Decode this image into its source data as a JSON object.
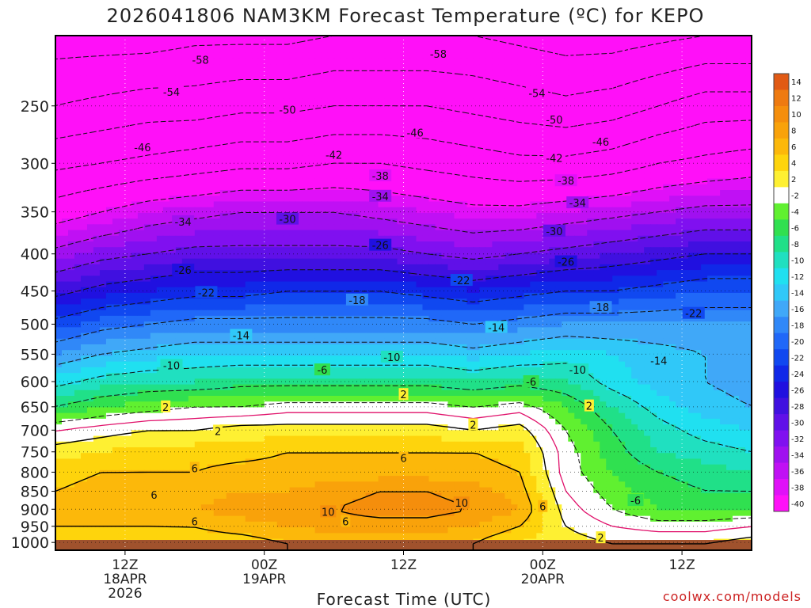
{
  "chart_data": {
    "type": "heatmap",
    "title": "2026041806 NAM3KM Forecast Temperature (ºC) for KEPO",
    "xlabel": "Forecast Time (UTC)",
    "credit": "coolwx.com/models",
    "y_scale": "log",
    "y_range": [
      200,
      1025
    ],
    "y_ticks": [
      250,
      300,
      350,
      400,
      450,
      500,
      550,
      600,
      650,
      700,
      750,
      800,
      850,
      900,
      950,
      1000
    ],
    "x_range": [
      0,
      60
    ],
    "x_ticks": [
      {
        "hour": 6,
        "lines": [
          "12Z",
          "18APR",
          "2026"
        ]
      },
      {
        "hour": 18,
        "lines": [
          "00Z",
          "19APR"
        ]
      },
      {
        "hour": 30,
        "lines": [
          "12Z"
        ]
      },
      {
        "hour": 42,
        "lines": [
          "00Z",
          "20APR"
        ]
      },
      {
        "hour": 54,
        "lines": [
          "12Z"
        ]
      }
    ],
    "colorbar": {
      "labels": [
        "14",
        "12",
        "10",
        "8",
        "6",
        "4",
        "2",
        "-2",
        "-4",
        "-6",
        "-8",
        "-10",
        "-12",
        "-14",
        "-16",
        "-18",
        "-20",
        "-22",
        "-24",
        "-26",
        "-28",
        "-30",
        "-32",
        "-34",
        "-36",
        "-38",
        "-40"
      ],
      "colors": [
        "#e15a14",
        "#ee7a10",
        "#f58e0c",
        "#f9a20a",
        "#fcb80a",
        "#fed40c",
        "#fef032",
        "#ffffff",
        "#60f030",
        "#30e050",
        "#20e088",
        "#20e0c0",
        "#20e0f0",
        "#30c8f8",
        "#40a8f8",
        "#3088f8",
        "#2068f8",
        "#1048f0",
        "#1028e8",
        "#2010e0",
        "#4010e0",
        "#6010e8",
        "#8010f0",
        "#a010f0",
        "#c010f4",
        "#e010f8",
        "#ff10f8"
      ]
    },
    "grid": true,
    "x_hours": [
      0,
      4,
      8,
      12,
      16,
      20,
      24,
      28,
      32,
      36,
      40,
      44,
      48,
      52,
      56,
      60
    ],
    "pressure_levels": [
      200,
      250,
      300,
      350,
      400,
      450,
      500,
      550,
      600,
      650,
      700,
      750,
      800,
      850,
      900,
      950,
      1000
    ],
    "temperature_c": [
      [
        -60,
        -60,
        -60,
        -59,
        -59,
        -59,
        -58,
        -58,
        -58,
        -58,
        -59,
        -60,
        -60,
        -59,
        -58,
        -58
      ],
      [
        -54,
        -53,
        -52,
        -52,
        -51,
        -51,
        -50,
        -50,
        -50,
        -51,
        -52,
        -53,
        -52,
        -50,
        -48,
        -48
      ],
      [
        -47,
        -46,
        -45,
        -44,
        -43,
        -43,
        -42,
        -42,
        -43,
        -44,
        -45,
        -45,
        -44,
        -42,
        -41,
        -40
      ],
      [
        -40,
        -38,
        -36,
        -35,
        -34,
        -34,
        -34,
        -35,
        -36,
        -37,
        -37,
        -36,
        -35,
        -34,
        -33,
        -33
      ],
      [
        -33,
        -31,
        -30,
        -29,
        -29,
        -29,
        -29,
        -29,
        -30,
        -31,
        -30,
        -29,
        -28,
        -27,
        -26,
        -26
      ],
      [
        -27,
        -25,
        -24,
        -23,
        -23,
        -22,
        -22,
        -22,
        -23,
        -24,
        -23,
        -22,
        -22,
        -21,
        -20,
        -20
      ],
      [
        -21,
        -19,
        -18,
        -17,
        -17,
        -17,
        -17,
        -17,
        -17,
        -18,
        -17,
        -16,
        -16,
        -16,
        -16,
        -16
      ],
      [
        -16,
        -14,
        -13,
        -12,
        -12,
        -12,
        -12,
        -12,
        -12,
        -13,
        -12,
        -11,
        -12,
        -13,
        -14,
        -14
      ],
      [
        -11,
        -9,
        -8,
        -8,
        -7,
        -7,
        -7,
        -7,
        -7,
        -8,
        -7,
        -8,
        -11,
        -13,
        -14,
        -15
      ],
      [
        -6,
        -4,
        -3,
        -2,
        -2,
        -1,
        -1,
        -1,
        -1,
        -2,
        -1,
        -4,
        -8,
        -11,
        -13,
        -14
      ],
      [
        0,
        1,
        2,
        2,
        3,
        3,
        3,
        3,
        3,
        2,
        3,
        -2,
        -6,
        -9,
        -11,
        -12
      ],
      [
        3,
        4,
        5,
        5,
        5,
        6,
        6,
        6,
        6,
        6,
        5,
        -1,
        -5,
        -8,
        -9,
        -10
      ],
      [
        5,
        6,
        6,
        6,
        7,
        7,
        7,
        7,
        7,
        7,
        6,
        -1,
        -4,
        -6,
        -7,
        -8
      ],
      [
        6,
        7,
        7,
        7,
        8,
        8,
        9,
        10,
        10,
        9,
        7,
        0,
        -3,
        -5,
        -6,
        -6
      ],
      [
        7,
        7,
        7,
        8,
        9,
        10,
        10,
        11,
        11,
        10,
        8,
        1,
        -2,
        -4,
        -4,
        -4
      ],
      [
        6,
        6,
        6,
        6,
        7,
        8,
        9,
        9,
        9,
        8,
        6,
        2,
        0,
        -1,
        -1,
        0
      ],
      [
        5,
        5,
        5,
        5,
        5,
        6,
        6,
        7,
        7,
        6,
        4,
        3,
        2,
        2,
        2,
        3
      ]
    ],
    "contour_labels": [
      {
        "value": -58,
        "hour": 12.5,
        "p": 216
      },
      {
        "value": -58,
        "hour": 33,
        "p": 212
      },
      {
        "value": -54,
        "hour": 10,
        "p": 239
      },
      {
        "value": -54,
        "hour": 41.5,
        "p": 240
      },
      {
        "value": -50,
        "hour": 20,
        "p": 253
      },
      {
        "value": -50,
        "hour": 43,
        "p": 261
      },
      {
        "value": -46,
        "hour": 7.5,
        "p": 285
      },
      {
        "value": -46,
        "hour": 31,
        "p": 272
      },
      {
        "value": -46,
        "hour": 47,
        "p": 280
      },
      {
        "value": -42,
        "hour": 24,
        "p": 292
      },
      {
        "value": -42,
        "hour": 43,
        "p": 295
      },
      {
        "value": -38,
        "hour": 28,
        "p": 312
      },
      {
        "value": -38,
        "hour": 44,
        "p": 317
      },
      {
        "value": -34,
        "hour": 11,
        "p": 361
      },
      {
        "value": -34,
        "hour": 28,
        "p": 333
      },
      {
        "value": -34,
        "hour": 45,
        "p": 340
      },
      {
        "value": -30,
        "hour": 20,
        "p": 358
      },
      {
        "value": -30,
        "hour": 43,
        "p": 372
      },
      {
        "value": -26,
        "hour": 11,
        "p": 421
      },
      {
        "value": -26,
        "hour": 28,
        "p": 389
      },
      {
        "value": -26,
        "hour": 44,
        "p": 410
      },
      {
        "value": -22,
        "hour": 13,
        "p": 452
      },
      {
        "value": -22,
        "hour": 35,
        "p": 435
      },
      {
        "value": -22,
        "hour": 55,
        "p": 483
      },
      {
        "value": -18,
        "hour": 26,
        "p": 463
      },
      {
        "value": -18,
        "hour": 47,
        "p": 474
      },
      {
        "value": -14,
        "hour": 16,
        "p": 518
      },
      {
        "value": -14,
        "hour": 38,
        "p": 505
      },
      {
        "value": -14,
        "hour": 52,
        "p": 561
      },
      {
        "value": -10,
        "hour": 10,
        "p": 570
      },
      {
        "value": -10,
        "hour": 29,
        "p": 555
      },
      {
        "value": -10,
        "hour": 45,
        "p": 578
      },
      {
        "value": -6,
        "hour": 23,
        "p": 578
      },
      {
        "value": -6,
        "hour": 41,
        "p": 600
      },
      {
        "value": -6,
        "hour": 50,
        "p": 875
      },
      {
        "value": 2,
        "hour": 9.5,
        "p": 650
      },
      {
        "value": 2,
        "hour": 30,
        "p": 625
      },
      {
        "value": 2,
        "hour": 46,
        "p": 648
      },
      {
        "value": 2,
        "hour": 14,
        "p": 702
      },
      {
        "value": 2,
        "hour": 36,
        "p": 688
      },
      {
        "value": 2,
        "hour": 47,
        "p": 985
      },
      {
        "value": 6,
        "hour": 12,
        "p": 790
      },
      {
        "value": 6,
        "hour": 8.5,
        "p": 860
      },
      {
        "value": 6,
        "hour": 12,
        "p": 935
      },
      {
        "value": 6,
        "hour": 30,
        "p": 765
      },
      {
        "value": 6,
        "hour": 25,
        "p": 935
      },
      {
        "value": 6,
        "hour": 42,
        "p": 892
      },
      {
        "value": 10,
        "hour": 23.5,
        "p": 907
      },
      {
        "value": 10,
        "hour": 35,
        "p": 882
      }
    ]
  }
}
